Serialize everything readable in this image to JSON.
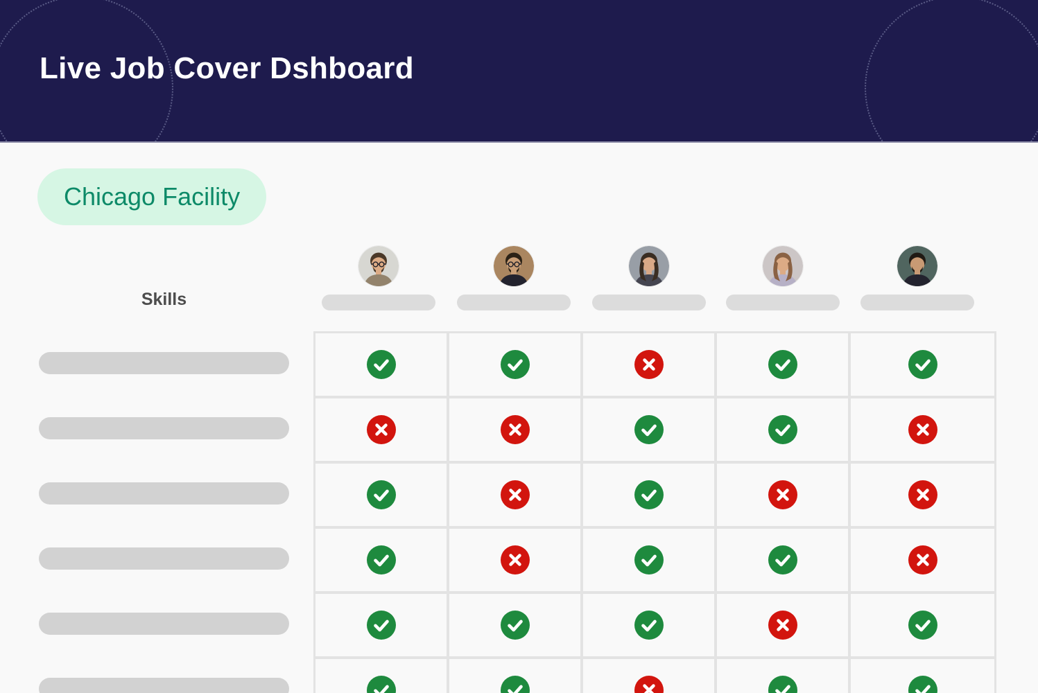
{
  "header": {
    "title": "Live Job Cover Dshboard",
    "background_color": "#1e1b4d"
  },
  "facility_badge": {
    "label": "Chicago Facility",
    "background_color": "#d6f6e4",
    "text_color": "#0d8a68"
  },
  "matrix": {
    "skills_column_header": "Skills",
    "people": [
      {
        "avatar_icon": "man-glasses-beard-photo"
      },
      {
        "avatar_icon": "man-glasses-beard-dark-shirt-photo"
      },
      {
        "avatar_icon": "woman-long-dark-hair-photo"
      },
      {
        "avatar_icon": "woman-long-brown-hair-photo"
      },
      {
        "avatar_icon": "man-dark-hair-beard-photo"
      }
    ],
    "skill_rows": [
      {
        "availability": [
          "available",
          "available",
          "unavailable",
          "available",
          "available"
        ]
      },
      {
        "availability": [
          "unavailable",
          "unavailable",
          "available",
          "available",
          "unavailable"
        ]
      },
      {
        "availability": [
          "available",
          "unavailable",
          "available",
          "unavailable",
          "unavailable"
        ]
      },
      {
        "availability": [
          "available",
          "unavailable",
          "available",
          "available",
          "unavailable"
        ]
      },
      {
        "availability": [
          "available",
          "available",
          "available",
          "unavailable",
          "available"
        ]
      },
      {
        "availability": [
          "available",
          "available",
          "unavailable",
          "available",
          "available"
        ]
      }
    ]
  },
  "status": {
    "available_icon": "check-circle-icon",
    "unavailable_icon": "x-circle-icon",
    "available_color": "#1e8a3e",
    "unavailable_color": "#d2150e"
  }
}
